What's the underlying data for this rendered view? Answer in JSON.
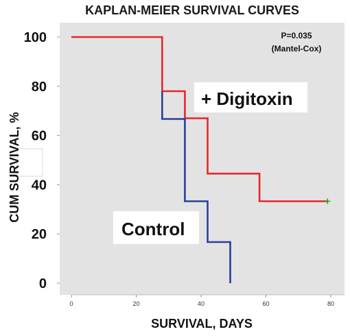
{
  "chart_data": {
    "type": "line",
    "title": "KAPLAN-MEIER SURVIVAL CURVES",
    "xlabel": "SURVIVAL, DAYS",
    "ylabel": "CUM SURVIVAL, %",
    "xlim": [
      0,
      80
    ],
    "ylim": [
      0,
      100
    ],
    "xticks": [
      "0",
      "20",
      "40",
      "60",
      "80"
    ],
    "yticks": [
      "0",
      "20",
      "40",
      "60",
      "80",
      "100"
    ],
    "annotations": {
      "p_value": "P=0.035",
      "test": "(Mantel-Cox)"
    },
    "series": [
      {
        "name": "+ Digitoxin",
        "color": "#e8262a",
        "x": [
          0,
          28,
          28,
          35,
          35,
          42,
          42,
          58,
          58,
          79
        ],
        "y": [
          100,
          100,
          78,
          78,
          67,
          67,
          44.5,
          44.5,
          33.3,
          33.3
        ],
        "censored": [
          [
            79,
            33.3
          ]
        ]
      },
      {
        "name": "Control",
        "color": "#2a3f9e",
        "x": [
          28,
          28,
          35,
          35,
          42,
          42,
          49,
          49
        ],
        "y": [
          78,
          66.7,
          66.7,
          33.3,
          33.3,
          16.7,
          16.7,
          0
        ]
      }
    ]
  }
}
